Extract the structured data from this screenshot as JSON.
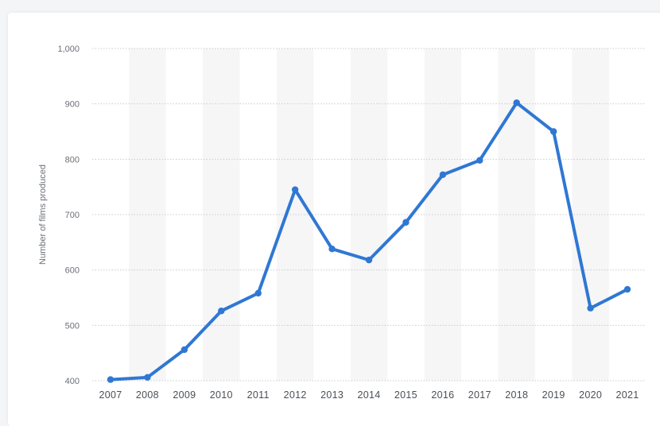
{
  "chart_data": {
    "type": "line",
    "title": "",
    "xlabel": "",
    "ylabel": "Number of films produced",
    "ylim": [
      400,
      1000
    ],
    "yticks": [
      400,
      500,
      600,
      700,
      800,
      900,
      1000
    ],
    "ytick_labels": [
      "400",
      "500",
      "600",
      "700",
      "800",
      "900",
      "1,000"
    ],
    "categories": [
      "2007",
      "2008",
      "2009",
      "2010",
      "2011",
      "2012",
      "2013",
      "2014",
      "2015",
      "2016",
      "2017",
      "2018",
      "2019",
      "2020",
      "2021"
    ],
    "series": [
      {
        "values": [
          402,
          406,
          456,
          526,
          558,
          745,
          638,
          618,
          686,
          772,
          798,
          902,
          850,
          531,
          565
        ]
      }
    ],
    "grid": true,
    "line_color": "#2f77d4",
    "band_color": "#f6f6f7"
  }
}
